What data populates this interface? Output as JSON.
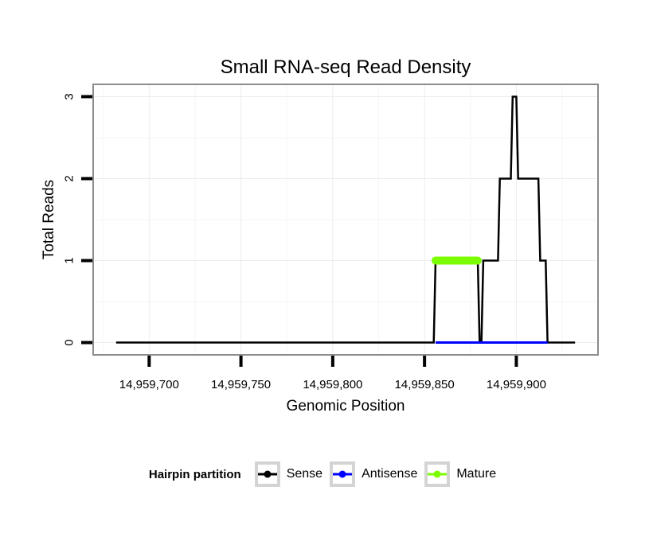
{
  "chart_data": {
    "type": "line",
    "title": "Small RNA-seq Read Density",
    "xlabel": "Genomic Position",
    "ylabel": "Total Reads",
    "xlim": [
      14959669.5,
      14959944.5
    ],
    "ylim": [
      -0.15,
      3.15
    ],
    "x_ticks": [
      {
        "value": 14959700,
        "label": "14,959,700"
      },
      {
        "value": 14959750,
        "label": "14,959,750"
      },
      {
        "value": 14959800,
        "label": "14,959,800"
      },
      {
        "value": 14959850,
        "label": "14,959,850"
      },
      {
        "value": 14959900,
        "label": "14,959,900"
      }
    ],
    "x_minor": [
      14959675,
      14959725,
      14959775,
      14959825,
      14959875,
      14959925
    ],
    "y_ticks": [
      {
        "value": 0,
        "label": "0"
      },
      {
        "value": 1,
        "label": "1"
      },
      {
        "value": 2,
        "label": "2"
      },
      {
        "value": 3,
        "label": "3"
      }
    ],
    "y_minor": [
      0.5,
      1.5,
      2.5
    ],
    "grid": {
      "major": true,
      "minor": true,
      "major_color": "#ECECEC",
      "minor_color": "#F6F6F6"
    },
    "panel_border_color": "#8C8C8C",
    "tick_color": "#000000",
    "legend_position": "bottom",
    "legend_title": "Hairpin partition",
    "series": [
      {
        "name": "Sense",
        "color": "#000000",
        "line_width": 2.5,
        "linecap": "butt",
        "points": [
          [
            14959682,
            0
          ],
          [
            14959855,
            0
          ],
          [
            14959856,
            1
          ],
          [
            14959879,
            1
          ],
          [
            14959880,
            0
          ],
          [
            14959881,
            0
          ],
          [
            14959882,
            1
          ],
          [
            14959890,
            1
          ],
          [
            14959891,
            2
          ],
          [
            14959897,
            2
          ],
          [
            14959898,
            3
          ],
          [
            14959900,
            3
          ],
          [
            14959901,
            2
          ],
          [
            14959912,
            2
          ],
          [
            14959913,
            1
          ],
          [
            14959916,
            1
          ],
          [
            14959917,
            0
          ],
          [
            14959932,
            0
          ]
        ]
      },
      {
        "name": "Antisense",
        "color": "#0000FF",
        "line_width": 3,
        "linecap": "butt",
        "points": [
          [
            14959856,
            0
          ],
          [
            14959917,
            0
          ]
        ]
      },
      {
        "name": "Mature",
        "color": "#7CFC00",
        "line_width": 10,
        "linecap": "round",
        "points": [
          [
            14959856,
            1
          ],
          [
            14959879,
            1
          ]
        ]
      }
    ]
  },
  "legend": {
    "title": "Hairpin partition",
    "items": [
      {
        "label": "Sense",
        "color": "#000000"
      },
      {
        "label": "Antisense",
        "color": "#0000FF"
      },
      {
        "label": "Mature",
        "color": "#7CFC00"
      }
    ]
  }
}
